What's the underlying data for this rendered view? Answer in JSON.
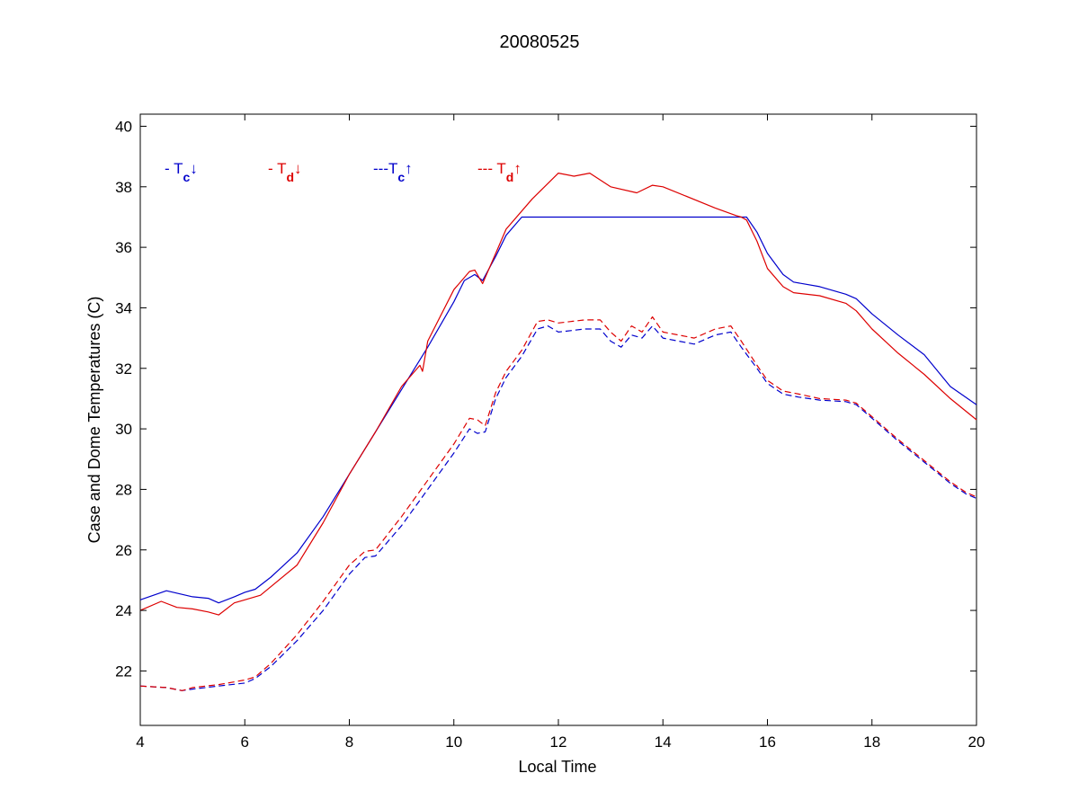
{
  "chart_data": {
    "type": "line",
    "title": "20080525",
    "xlabel": "Local Time",
    "ylabel": "Case and Dome Temperatures (C)",
    "xlim": [
      4,
      20
    ],
    "ylim": [
      20.2,
      40.4
    ],
    "xticks": [
      4,
      6,
      8,
      10,
      12,
      14,
      16,
      18,
      20
    ],
    "yticks": [
      22,
      24,
      26,
      28,
      30,
      32,
      34,
      36,
      38,
      40
    ],
    "grid": false,
    "legend_position": "top-left",
    "legend": [
      {
        "prefix": "- T",
        "sub": "c",
        "arrow": "↓",
        "color": "#0000cc"
      },
      {
        "prefix": "- T",
        "sub": "d",
        "arrow": "↓",
        "color": "#dd0000"
      },
      {
        "prefix": "---T",
        "sub": "c",
        "arrow": "↑",
        "color": "#0000cc"
      },
      {
        "prefix": "--- T",
        "sub": "d",
        "arrow": "↑",
        "color": "#dd0000"
      }
    ],
    "series": [
      {
        "color": "#0000cc",
        "style": "solid",
        "x": [
          4.0,
          4.5,
          5.0,
          5.3,
          5.5,
          5.8,
          6.0,
          6.2,
          6.5,
          7.0,
          7.5,
          8.0,
          8.5,
          9.0,
          9.5,
          10.0,
          10.2,
          10.4,
          10.55,
          10.8,
          11.0,
          11.3,
          12.0,
          13.0,
          14.0,
          15.0,
          15.5,
          15.6,
          15.8,
          16.0,
          16.3,
          16.5,
          17.0,
          17.5,
          17.7,
          18.0,
          18.5,
          19.0,
          19.5,
          20.0
        ],
        "y": [
          24.35,
          24.65,
          24.45,
          24.4,
          24.25,
          24.45,
          24.6,
          24.7,
          25.1,
          25.9,
          27.1,
          28.5,
          29.9,
          31.3,
          32.7,
          34.2,
          34.9,
          35.1,
          34.9,
          35.7,
          36.4,
          37.0,
          37.0,
          37.0,
          37.0,
          37.0,
          37.0,
          37.0,
          36.5,
          35.8,
          35.1,
          34.85,
          34.7,
          34.45,
          34.3,
          33.8,
          33.1,
          32.45,
          31.4,
          30.8
        ]
      },
      {
        "color": "#dd0000",
        "style": "solid",
        "x": [
          4.0,
          4.4,
          4.7,
          5.0,
          5.3,
          5.5,
          5.8,
          6.0,
          6.3,
          7.0,
          7.5,
          8.0,
          8.5,
          9.0,
          9.35,
          9.4,
          9.5,
          10.0,
          10.3,
          10.4,
          10.55,
          10.8,
          11.0,
          11.5,
          12.0,
          12.3,
          12.6,
          13.0,
          13.5,
          13.8,
          14.0,
          15.0,
          15.4,
          15.5,
          15.6,
          15.8,
          16.0,
          16.3,
          16.5,
          17.0,
          17.5,
          17.7,
          18.0,
          18.5,
          19.0,
          19.5,
          20.0
        ],
        "y": [
          24.0,
          24.3,
          24.1,
          24.05,
          23.95,
          23.85,
          24.25,
          24.35,
          24.5,
          25.5,
          26.9,
          28.5,
          29.9,
          31.4,
          32.1,
          31.9,
          32.9,
          34.6,
          35.2,
          35.25,
          34.8,
          35.8,
          36.6,
          37.6,
          38.45,
          38.35,
          38.45,
          38.0,
          37.8,
          38.05,
          38.0,
          37.3,
          37.05,
          37.0,
          36.9,
          36.2,
          35.3,
          34.7,
          34.5,
          34.4,
          34.15,
          33.9,
          33.3,
          32.5,
          31.8,
          31.0,
          30.3
        ]
      },
      {
        "color": "#0000cc",
        "style": "dashed",
        "x": [
          4.0,
          4.5,
          4.8,
          5.0,
          5.5,
          6.0,
          6.2,
          6.5,
          7.0,
          7.5,
          8.0,
          8.3,
          8.5,
          9.0,
          9.5,
          10.0,
          10.3,
          10.45,
          10.6,
          10.8,
          11.0,
          11.3,
          11.6,
          11.8,
          12.0,
          12.5,
          12.8,
          13.0,
          13.2,
          13.4,
          13.6,
          13.8,
          14.0,
          14.3,
          14.6,
          15.0,
          15.3,
          15.5,
          15.8,
          16.0,
          16.3,
          16.6,
          17.0,
          17.5,
          17.7,
          18.0,
          18.5,
          19.0,
          19.5,
          19.8,
          20.0
        ],
        "y": [
          21.5,
          21.45,
          21.35,
          21.4,
          21.5,
          21.6,
          21.75,
          22.15,
          23.0,
          24.0,
          25.2,
          25.75,
          25.8,
          26.8,
          28.0,
          29.2,
          30.0,
          29.85,
          29.9,
          31.0,
          31.7,
          32.4,
          33.3,
          33.4,
          33.2,
          33.3,
          33.3,
          32.9,
          32.7,
          33.1,
          33.0,
          33.4,
          33.0,
          32.9,
          32.8,
          33.1,
          33.2,
          32.7,
          32.0,
          31.5,
          31.15,
          31.05,
          30.95,
          30.9,
          30.8,
          30.35,
          29.6,
          28.9,
          28.2,
          27.85,
          27.7
        ]
      },
      {
        "color": "#dd0000",
        "style": "dashed",
        "x": [
          4.0,
          4.5,
          4.8,
          5.0,
          5.5,
          6.0,
          6.2,
          6.5,
          7.0,
          7.5,
          8.0,
          8.3,
          8.5,
          9.0,
          9.5,
          10.0,
          10.3,
          10.45,
          10.6,
          10.8,
          11.0,
          11.3,
          11.6,
          11.8,
          12.0,
          12.5,
          12.8,
          13.0,
          13.2,
          13.4,
          13.6,
          13.8,
          14.0,
          14.3,
          14.6,
          15.0,
          15.3,
          15.5,
          15.8,
          16.0,
          16.3,
          16.6,
          17.0,
          17.5,
          17.7,
          18.0,
          18.5,
          19.0,
          19.5,
          19.8,
          20.0
        ],
        "y": [
          21.5,
          21.45,
          21.35,
          21.45,
          21.55,
          21.7,
          21.8,
          22.25,
          23.2,
          24.3,
          25.5,
          25.95,
          26.0,
          27.1,
          28.3,
          29.5,
          30.35,
          30.3,
          30.1,
          31.2,
          31.9,
          32.6,
          33.55,
          33.6,
          33.5,
          33.6,
          33.6,
          33.2,
          32.9,
          33.4,
          33.2,
          33.7,
          33.2,
          33.1,
          33.0,
          33.3,
          33.4,
          32.9,
          32.1,
          31.6,
          31.25,
          31.15,
          31.0,
          30.95,
          30.85,
          30.4,
          29.65,
          28.95,
          28.25,
          27.9,
          27.75
        ]
      }
    ]
  }
}
